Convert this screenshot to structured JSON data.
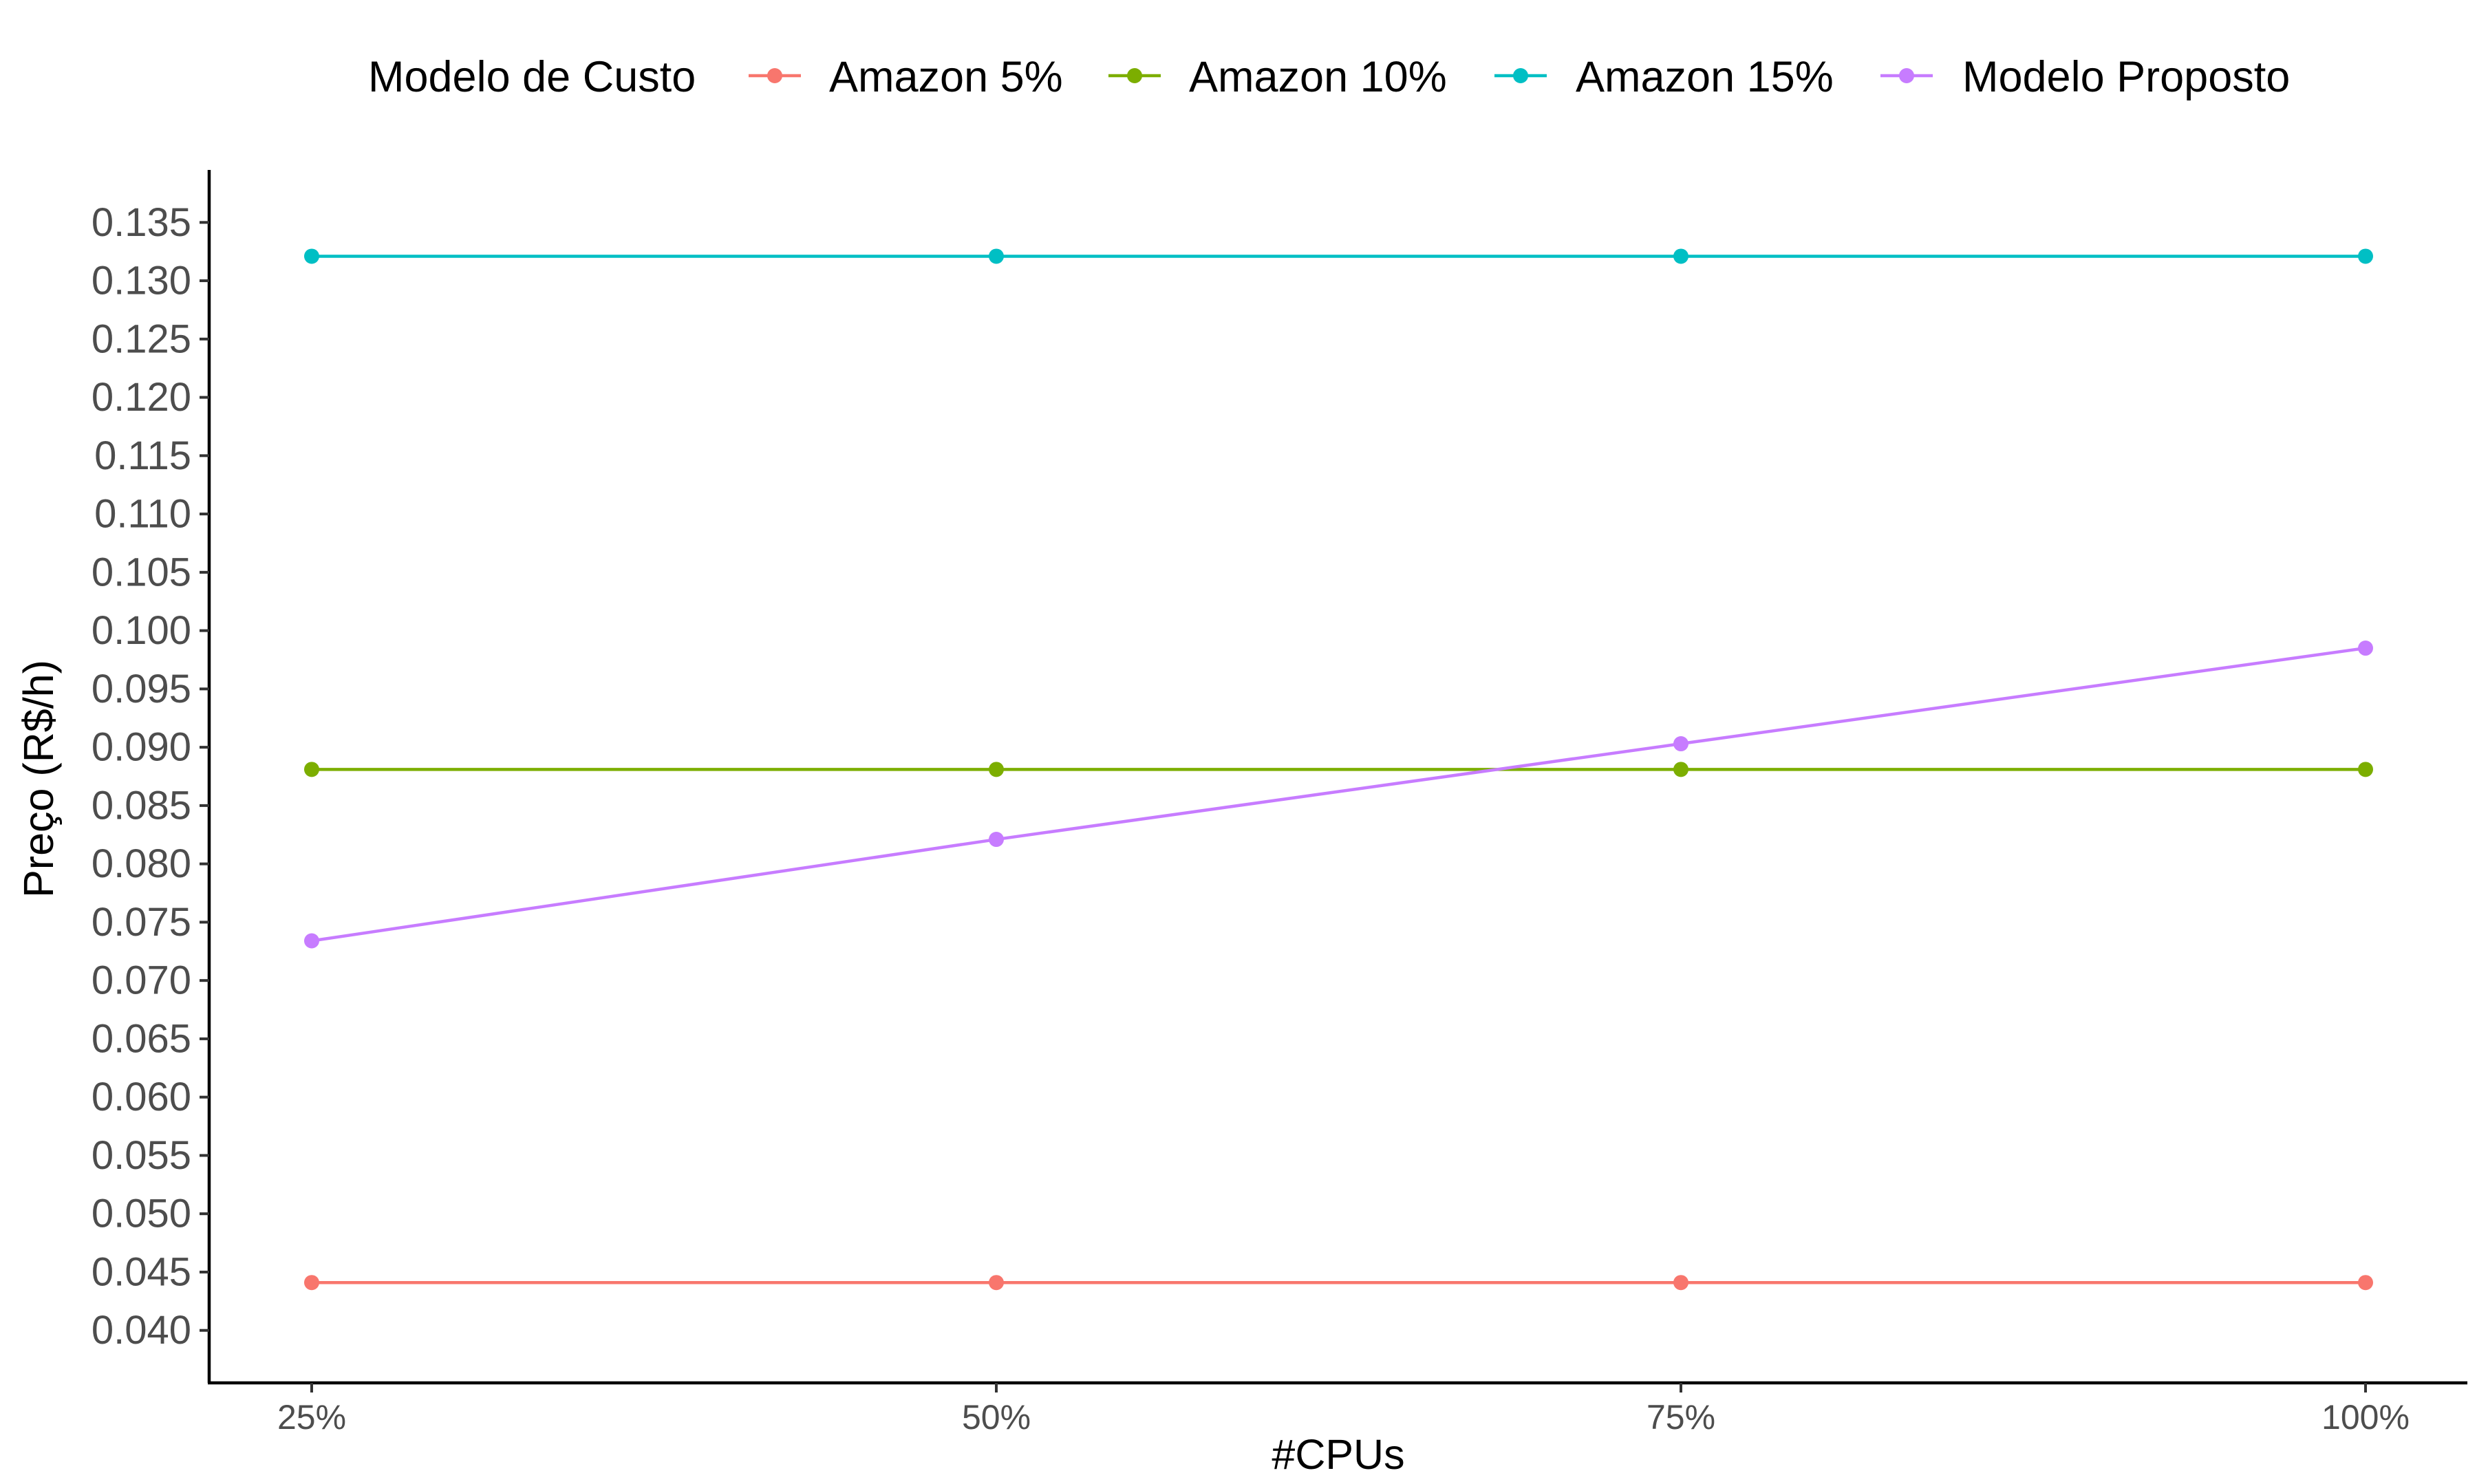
{
  "chart_data": {
    "type": "line",
    "title": "",
    "xlabel": "#CPUs",
    "ylabel": "Preço (R$/h)",
    "categories": [
      "25%",
      "50%",
      "75%",
      "100%"
    ],
    "ylim": [
      0.0355,
      0.1395
    ],
    "yticks": [
      "0.040",
      "0.045",
      "0.050",
      "0.055",
      "0.060",
      "0.065",
      "0.070",
      "0.075",
      "0.080",
      "0.085",
      "0.090",
      "0.095",
      "0.100",
      "0.105",
      "0.110",
      "0.115",
      "0.120",
      "0.125",
      "0.130",
      "0.135"
    ],
    "grid": false,
    "legend": {
      "title": "Modelo de Custo",
      "position": "top"
    },
    "series": [
      {
        "name": "Amazon 5%",
        "color": "#F8766D",
        "values": [
          0.0441,
          0.0441,
          0.0441,
          0.0441
        ]
      },
      {
        "name": "Amazon 10%",
        "color": "#7CAE00",
        "values": [
          0.0881,
          0.0881,
          0.0881,
          0.0881
        ]
      },
      {
        "name": "Amazon 15%",
        "color": "#00BFC4",
        "values": [
          0.1321,
          0.1321,
          0.1321,
          0.1321
        ]
      },
      {
        "name": "Modelo Proposto",
        "color": "#C77CFF",
        "values": [
          0.0734,
          0.0821,
          0.0903,
          0.0985
        ]
      }
    ]
  }
}
